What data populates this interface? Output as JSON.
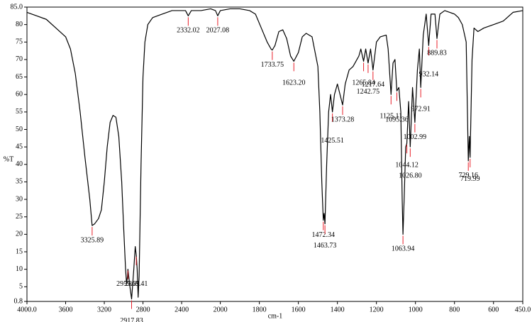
{
  "chart_data": {
    "type": "line",
    "xlabel": "cm-1",
    "ylabel": "%T",
    "xlim": [
      4000,
      450
    ],
    "ylim": [
      0.8,
      85
    ],
    "x_scale_change_at": 2000,
    "xticks": [
      {
        "value": 4000,
        "label": "4000.0"
      },
      3600,
      3200,
      2800,
      2400,
      2000,
      1800,
      1600,
      1400,
      1200,
      1000,
      800,
      600,
      {
        "value": 450,
        "label": "450.0"
      }
    ],
    "yticks": [
      {
        "value": 85,
        "label": "85.0"
      },
      80,
      75,
      70,
      65,
      60,
      55,
      50,
      45,
      40,
      35,
      30,
      25,
      20,
      15,
      10,
      5,
      0.8
    ],
    "color": "#000000",
    "peak_color": "#e8202a",
    "x": [
      4000,
      3900,
      3800,
      3700,
      3600,
      3550,
      3500,
      3450,
      3400,
      3350,
      3326,
      3300,
      3260,
      3230,
      3200,
      3170,
      3140,
      3110,
      3080,
      3050,
      3020,
      3000,
      2980,
      2970,
      2960,
      2955.65,
      2935,
      2917.83,
      2895,
      2880,
      2869.41,
      2860,
      2850,
      2840,
      2820,
      2800,
      2780,
      2750,
      2700,
      2600,
      2500,
      2400,
      2360,
      2332,
      2300,
      2200,
      2100,
      2050,
      2027,
      2000,
      1950,
      1900,
      1850,
      1820,
      1790,
      1760,
      1740,
      1733.75,
      1720,
      1700,
      1680,
      1660,
      1640,
      1623.2,
      1600,
      1580,
      1560,
      1530,
      1500,
      1490,
      1480,
      1472.34,
      1468,
      1463.73,
      1455,
      1445,
      1435,
      1425.51,
      1415,
      1400,
      1373.28,
      1360,
      1340,
      1320,
      1300,
      1290,
      1280,
      1265.84,
      1255,
      1242.75,
      1230,
      1217.64,
      1200,
      1180,
      1150,
      1140,
      1125.11,
      1115,
      1105,
      1095.36,
      1085,
      1075,
      1068,
      1063.94,
      1058,
      1050,
      1044.12,
      1035,
      1026.8,
      1015,
      1002.99,
      990,
      980,
      972.91,
      960,
      945,
      932.14,
      920,
      900,
      889.83,
      875,
      850,
      800,
      780,
      760,
      740,
      729.16,
      724,
      719.99,
      710,
      700,
      680,
      650,
      600,
      550,
      500,
      450
    ],
    "values": [
      83.5,
      82.5,
      81.5,
      79,
      76.5,
      73,
      66,
      55,
      42,
      30,
      22.5,
      23,
      24.5,
      27,
      35,
      45,
      52,
      54,
      53.5,
      48,
      35,
      22,
      10,
      6,
      8,
      10,
      5,
      1.5,
      10,
      16.5,
      14,
      10,
      2,
      8,
      40,
      65,
      75,
      80,
      82,
      83,
      84,
      84,
      84,
      82.5,
      84,
      84,
      84.5,
      84,
      82.5,
      84,
      84.5,
      84.5,
      84,
      83,
      79,
      75,
      73,
      72.7,
      74,
      78,
      78.5,
      76,
      71,
      69.5,
      72,
      76.5,
      77.5,
      76.5,
      68,
      55,
      35,
      24,
      26,
      23,
      40,
      55,
      60,
      55,
      60,
      63,
      57,
      63,
      67,
      68,
      70,
      71,
      73,
      69.5,
      73,
      69,
      73,
      67,
      75,
      76.5,
      77,
      73,
      60,
      69,
      70,
      61,
      62,
      55,
      30,
      20,
      30,
      45,
      46,
      58,
      45,
      62,
      52,
      67,
      73,
      62,
      77,
      83,
      74,
      83,
      83,
      76,
      83,
      84,
      83,
      82,
      80,
      75,
      41,
      48,
      42,
      70,
      79,
      78,
      79,
      80,
      81,
      83.5,
      84
    ],
    "peaks": [
      {
        "value": 3325.89,
        "label": "3325.89"
      },
      {
        "value": 2955.65,
        "label": "2955.65"
      },
      {
        "value": 2917.83,
        "label": "2917.83"
      },
      {
        "value": 2869.41,
        "label": "2869.41"
      },
      {
        "value": 2332.02,
        "label": "2332.02"
      },
      {
        "value": 2027.08,
        "label": "2027.08"
      },
      {
        "value": 1733.75,
        "label": "1733.75"
      },
      {
        "value": 1623.2,
        "label": "1623.20"
      },
      {
        "value": 1472.34,
        "label": "1472.34"
      },
      {
        "value": 1463.73,
        "label": "1463.73"
      },
      {
        "value": 1425.51,
        "label": "1425.51"
      },
      {
        "value": 1373.28,
        "label": "1373.28"
      },
      {
        "value": 1265.84,
        "label": "1265.84"
      },
      {
        "value": 1242.75,
        "label": "1242.75"
      },
      {
        "value": 1217.64,
        "label": "1217.64"
      },
      {
        "value": 1125.11,
        "label": "1125.11"
      },
      {
        "value": 1095.36,
        "label": "1095.36"
      },
      {
        "value": 1063.94,
        "label": "1063.94"
      },
      {
        "value": 1044.12,
        "label": "1044.12"
      },
      {
        "value": 1026.8,
        "label": "1026.80"
      },
      {
        "value": 1002.99,
        "label": "1002.99"
      },
      {
        "value": 972.91,
        "label": "972.91"
      },
      {
        "value": 932.14,
        "label": "932.14"
      },
      {
        "value": 889.83,
        "label": "889.83"
      },
      {
        "value": 729.16,
        "label": "729.16"
      },
      {
        "value": 719.99,
        "label": "719.99"
      }
    ]
  }
}
